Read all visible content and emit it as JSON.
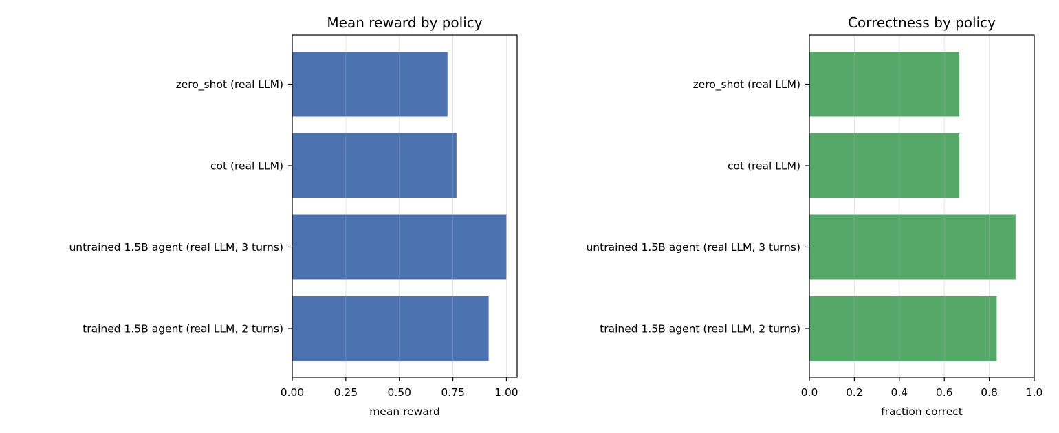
{
  "chart_data": [
    {
      "type": "bar",
      "orientation": "horizontal",
      "title": "Mean reward by policy",
      "xlabel": "mean reward",
      "ylabel": "",
      "categories": [
        "zero_shot (real LLM)",
        "cot (real LLM)",
        "untrained 1.5B agent (real LLM, 3 turns)",
        "trained 1.5B agent (real LLM, 2 turns)"
      ],
      "values": [
        0.725,
        0.767,
        1.0,
        0.917
      ],
      "xlim": [
        0,
        1.05
      ],
      "xticks": [
        0.0,
        0.25,
        0.5,
        0.75,
        1.0
      ],
      "xtick_labels": [
        "0.00",
        "0.25",
        "0.50",
        "0.75",
        "1.00"
      ],
      "grid": "x",
      "color": "#4c72b0"
    },
    {
      "type": "bar",
      "orientation": "horizontal",
      "title": "Correctness by policy",
      "xlabel": "fraction correct",
      "ylabel": "",
      "categories": [
        "zero_shot (real LLM)",
        "cot (real LLM)",
        "untrained 1.5B agent (real LLM, 3 turns)",
        "trained 1.5B agent (real LLM, 2 turns)"
      ],
      "values": [
        0.667,
        0.667,
        0.917,
        0.833
      ],
      "xlim": [
        0,
        1.0
      ],
      "xticks": [
        0.0,
        0.2,
        0.4,
        0.6,
        0.8,
        1.0
      ],
      "xtick_labels": [
        "0.0",
        "0.2",
        "0.4",
        "0.6",
        "0.8",
        "1.0"
      ],
      "grid": "x",
      "color": "#55a868"
    }
  ]
}
